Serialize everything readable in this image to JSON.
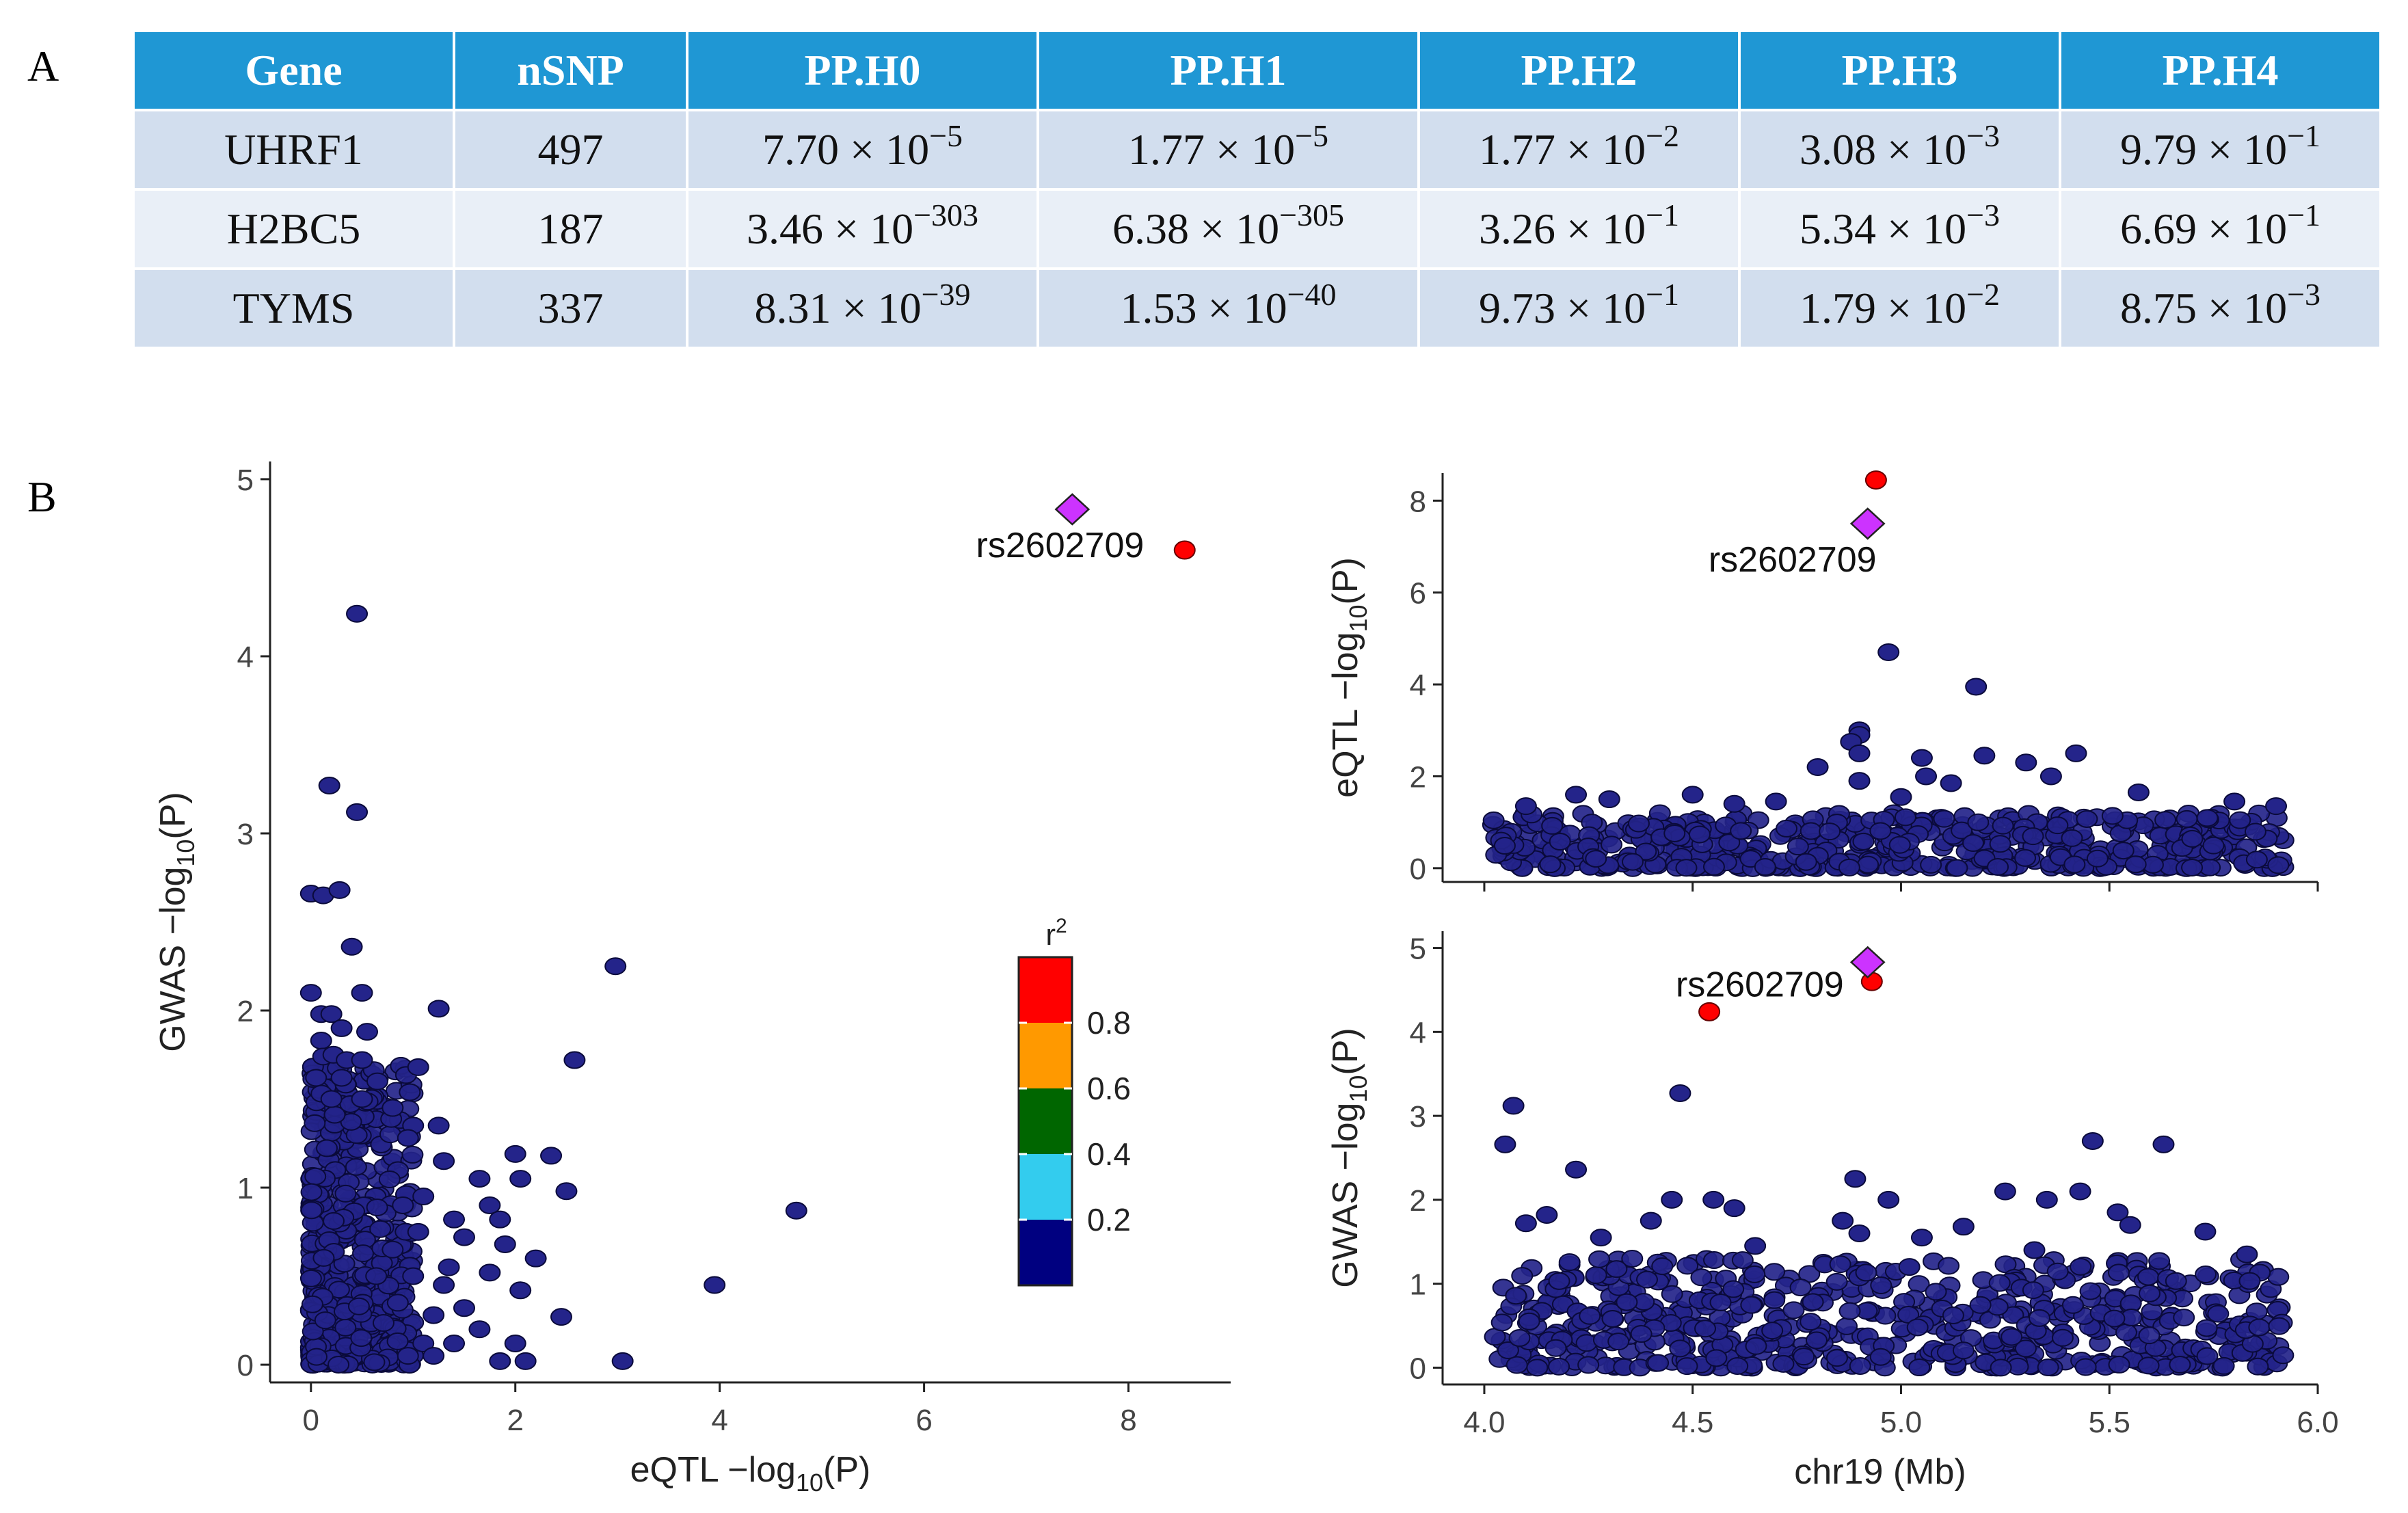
{
  "panel_labels": {
    "a": "A",
    "b": "B"
  },
  "table": {
    "headers": [
      "Gene",
      "nSNP",
      "PP.H0",
      "PP.H1",
      "PP.H2",
      "PP.H3",
      "PP.H4"
    ],
    "rows": [
      {
        "gene": "UHRF1",
        "nsnp": "497",
        "values": [
          [
            "7.70",
            "−5"
          ],
          [
            "1.77",
            "−5"
          ],
          [
            "1.77",
            "−2"
          ],
          [
            "3.08",
            "−3"
          ],
          [
            "9.79",
            "−1"
          ]
        ]
      },
      {
        "gene": "H2BC5",
        "nsnp": "187",
        "values": [
          [
            "3.46",
            "−303"
          ],
          [
            "6.38",
            "−305"
          ],
          [
            "3.26",
            "−1"
          ],
          [
            "5.34",
            "−3"
          ],
          [
            "6.69",
            "−1"
          ]
        ]
      },
      {
        "gene": "TYMS",
        "nsnp": "337",
        "values": [
          [
            "8.31",
            "−39"
          ],
          [
            "1.53",
            "−40"
          ],
          [
            "9.73",
            "−1"
          ],
          [
            "1.79",
            "−2"
          ],
          [
            "8.75",
            "−3"
          ]
        ]
      }
    ],
    "times_base": " × 10"
  },
  "colors": {
    "ld_low": "#24248a",
    "lead": "#ff0000",
    "index": "#cc33ff",
    "header_bg": "#1f97d4",
    "row_a": "#d2deee",
    "row_b": "#e9eff7"
  },
  "chart_data": [
    {
      "type": "scatter",
      "title": "",
      "xlabel": "eQTL −log",
      "xlabel_sub": "10",
      "xlabel_tail": "(P)",
      "ylabel": "GWAS −log",
      "ylabel_sub": "10",
      "ylabel_tail": "(P)",
      "xlim": [
        -0.4,
        9.0
      ],
      "ylim": [
        -0.1,
        5.1
      ],
      "xticks": [
        0,
        2,
        4,
        6,
        8
      ],
      "yticks": [
        0,
        1,
        2,
        3,
        4,
        5
      ],
      "index_snp": {
        "label": "rs2602709",
        "x": 7.45,
        "y": 4.83
      },
      "highlight": [
        {
          "x": 8.55,
          "y": 4.6,
          "r2_class": "0.8"
        }
      ],
      "points": [
        [
          0.45,
          4.24
        ],
        [
          0.18,
          3.27
        ],
        [
          0.45,
          3.12
        ],
        [
          0.0,
          2.66
        ],
        [
          0.12,
          2.65
        ],
        [
          0.28,
          2.68
        ],
        [
          0.4,
          2.36
        ],
        [
          0.0,
          2.1
        ],
        [
          0.5,
          2.1
        ],
        [
          0.1,
          1.98
        ],
        [
          0.2,
          1.98
        ],
        [
          0.1,
          1.83
        ],
        [
          0.3,
          1.9
        ],
        [
          0.55,
          1.88
        ],
        [
          0.12,
          1.74
        ],
        [
          0.22,
          1.75
        ],
        [
          0.35,
          1.72
        ],
        [
          0.5,
          1.72
        ],
        [
          0.05,
          1.62
        ],
        [
          0.3,
          1.62
        ],
        [
          0.65,
          1.6
        ],
        [
          0.2,
          1.5
        ],
        [
          0.5,
          1.5
        ],
        [
          0.8,
          1.45
        ],
        [
          1.05,
          1.68
        ],
        [
          1.25,
          2.01
        ],
        [
          2.98,
          2.25
        ],
        [
          2.58,
          1.72
        ],
        [
          1.0,
          1.35
        ],
        [
          1.25,
          1.35
        ],
        [
          0.95,
          1.28
        ],
        [
          1.3,
          1.15
        ],
        [
          1.65,
          1.05
        ],
        [
          2.0,
          1.19
        ],
        [
          2.35,
          1.18
        ],
        [
          2.05,
          1.05
        ],
        [
          2.5,
          0.98
        ],
        [
          1.75,
          0.9
        ],
        [
          1.85,
          0.82
        ],
        [
          4.75,
          0.87
        ],
        [
          1.5,
          0.72
        ],
        [
          1.9,
          0.68
        ],
        [
          2.2,
          0.6
        ],
        [
          1.35,
          0.55
        ],
        [
          1.75,
          0.52
        ],
        [
          2.05,
          0.42
        ],
        [
          2.45,
          0.27
        ],
        [
          1.5,
          0.32
        ],
        [
          1.2,
          0.28
        ],
        [
          1.65,
          0.2
        ],
        [
          2.0,
          0.12
        ],
        [
          2.1,
          0.02
        ],
        [
          1.85,
          0.02
        ],
        [
          3.95,
          0.45
        ],
        [
          3.05,
          0.02
        ],
        [
          1.1,
          0.12
        ],
        [
          0.9,
          0.9
        ],
        [
          1.1,
          0.95
        ],
        [
          0.8,
          0.65
        ],
        [
          1.05,
          0.75
        ],
        [
          1.4,
          0.82
        ],
        [
          0.85,
          0.35
        ],
        [
          1.0,
          0.5
        ],
        [
          1.3,
          0.45
        ],
        [
          1.2,
          0.05
        ],
        [
          1.4,
          0.12
        ],
        [
          0.95,
          0.05
        ]
      ],
      "cloud": {
        "n": 620,
        "x_max": 1.0,
        "y_max": 1.7,
        "seed": 11
      }
    },
    {
      "type": "scatter",
      "title": "",
      "xlabel": "",
      "ylabel": "eQTL −log",
      "ylabel_sub": "10",
      "ylabel_tail": "(P)",
      "xlim": [
        3.9,
        6.0
      ],
      "ylim": [
        -0.3,
        8.6
      ],
      "xticks": [
        4.0,
        4.5,
        5.0,
        5.5,
        6.0
      ],
      "yticks": [
        0,
        2,
        4,
        6,
        8
      ],
      "index_snp": {
        "label": "rs2602709",
        "x": 4.92,
        "y": 7.5
      },
      "highlight": [
        {
          "x": 4.94,
          "y": 8.45,
          "r2_class": "0.8"
        }
      ],
      "points": [
        [
          4.97,
          4.7
        ],
        [
          5.18,
          3.95
        ],
        [
          4.9,
          3.0
        ],
        [
          4.9,
          2.9
        ],
        [
          4.88,
          2.75
        ],
        [
          4.9,
          2.5
        ],
        [
          5.05,
          2.4
        ],
        [
          5.2,
          2.45
        ],
        [
          5.42,
          2.5
        ],
        [
          5.3,
          2.3
        ],
        [
          4.8,
          2.2
        ],
        [
          4.9,
          1.9
        ],
        [
          4.5,
          1.6
        ],
        [
          4.6,
          1.4
        ],
        [
          4.22,
          1.6
        ],
        [
          4.1,
          1.35
        ],
        [
          4.3,
          1.5
        ],
        [
          5.06,
          2.0
        ],
        [
          5.12,
          1.85
        ],
        [
          5.36,
          2.0
        ],
        [
          5.57,
          1.65
        ],
        [
          5.8,
          1.45
        ],
        [
          5.9,
          1.35
        ],
        [
          5.0,
          1.55
        ],
        [
          4.7,
          1.45
        ]
      ],
      "cloud": {
        "n": 560,
        "x_min": 4.02,
        "x_max": 5.92,
        "y_max": 1.2,
        "seed": 23
      }
    },
    {
      "type": "scatter",
      "title": "",
      "xlabel": "chr19 (Mb)",
      "ylabel": "GWAS −log",
      "ylabel_sub": "10",
      "ylabel_tail": "(P)",
      "xlim": [
        3.9,
        6.0
      ],
      "ylim": [
        -0.2,
        5.2
      ],
      "xticks": [
        4.0,
        4.5,
        5.0,
        5.5,
        6.0
      ],
      "xtick_labels": [
        "4.0",
        "4.5",
        "5.0",
        "5.5",
        "6.0"
      ],
      "yticks": [
        0,
        1,
        2,
        3,
        4,
        5
      ],
      "index_snp": {
        "label": "rs2602709",
        "x": 4.92,
        "y": 4.83
      },
      "highlight": [
        {
          "x": 4.93,
          "y": 4.6,
          "r2_class": "0.8"
        },
        {
          "x": 4.54,
          "y": 4.24,
          "r2_class": "0.8"
        }
      ],
      "points": [
        [
          4.07,
          3.12
        ],
        [
          4.05,
          2.66
        ],
        [
          4.47,
          3.27
        ],
        [
          4.22,
          2.36
        ],
        [
          4.89,
          2.25
        ],
        [
          4.97,
          2.0
        ],
        [
          5.25,
          2.1
        ],
        [
          5.35,
          2.0
        ],
        [
          5.43,
          2.1
        ],
        [
          5.46,
          2.7
        ],
        [
          5.63,
          2.66
        ],
        [
          5.52,
          1.85
        ],
        [
          5.73,
          1.62
        ],
        [
          4.15,
          1.82
        ],
        [
          4.1,
          1.72
        ],
        [
          4.4,
          1.75
        ],
        [
          4.55,
          2.0
        ],
        [
          4.6,
          1.9
        ],
        [
          4.45,
          2.0
        ],
        [
          4.86,
          1.75
        ],
        [
          5.05,
          1.55
        ],
        [
          5.15,
          1.68
        ],
        [
          4.9,
          1.6
        ],
        [
          5.55,
          1.7
        ],
        [
          5.83,
          1.35
        ],
        [
          4.28,
          1.55
        ],
        [
          4.65,
          1.45
        ],
        [
          5.02,
          1.2
        ],
        [
          5.32,
          1.4
        ]
      ],
      "cloud": {
        "n": 620,
        "x_min": 4.02,
        "x_max": 5.92,
        "y_max": 1.3,
        "seed": 37
      }
    }
  ],
  "legend": {
    "title": "r",
    "title_sup": "2",
    "labels": [
      "0.8",
      "0.6",
      "0.4",
      "0.2"
    ],
    "colors": [
      "#ff0000",
      "#ff9900",
      "#006600",
      "#33ccee",
      "#000080"
    ]
  }
}
